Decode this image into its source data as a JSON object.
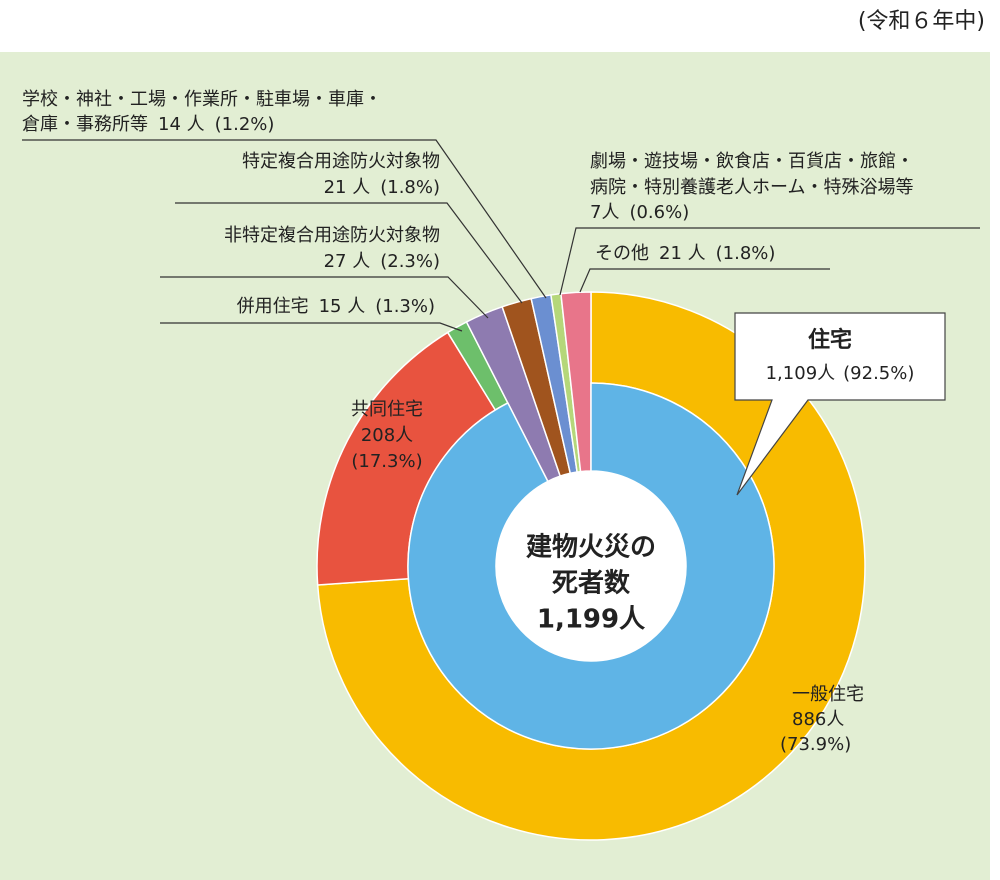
{
  "period": "(令和６年中)",
  "chart_data": {
    "type": "pie",
    "center_lines": [
      "建物火災の",
      "死者数"
    ],
    "total": 1199,
    "total_label": "1,199人",
    "segments": [
      {
        "name_lines": [
          "一般住宅"
        ],
        "value": 886,
        "value_label": "886人",
        "percent": 73.9,
        "percent_label": "(73.9%)",
        "color": "#f8bb00"
      },
      {
        "name_lines": [
          "共同住宅"
        ],
        "value": 208,
        "value_label": "208人",
        "percent": 17.3,
        "percent_label": "(17.3%)",
        "color": "#e8533f"
      },
      {
        "name_lines": [
          "併用住宅"
        ],
        "value": 15,
        "value_label": "15 人",
        "percent": 1.3,
        "percent_label": "(1.3%)",
        "color": "#6dbf6b"
      },
      {
        "name_lines": [
          "非特定複合用途防火対象物"
        ],
        "value": 27,
        "value_label": "27 人",
        "percent": 2.3,
        "percent_label": "(2.3%)",
        "color": "#8e7bb0"
      },
      {
        "name_lines": [
          "特定複合用途防火対象物"
        ],
        "value": 21,
        "value_label": "21 人",
        "percent": 1.8,
        "percent_label": "(1.8%)",
        "color": "#a0541e"
      },
      {
        "name_lines": [
          "学校・神社・工場・作業所・駐車場・車庫・",
          "倉庫・事務所等"
        ],
        "value": 14,
        "value_label": "14 人",
        "percent": 1.2,
        "percent_label": "(1.2%)",
        "color": "#6b8fd1"
      },
      {
        "name_lines": [
          "劇場・遊技場・飲食店・百貨店・旅館・",
          "病院・特別養護老人ホーム・特殊浴場等"
        ],
        "value": 7,
        "value_label": "7人",
        "percent": 0.6,
        "percent_label": "(0.6%)",
        "color": "#b5d77a"
      },
      {
        "name_lines": [
          "その他"
        ],
        "value": 21,
        "value_label": "21 人",
        "percent": 1.8,
        "percent_label": "(1.8%)",
        "color": "#e8758a"
      }
    ],
    "inner": {
      "name": "住宅",
      "value": 1109,
      "value_label": "1,109人",
      "percent": 92.5,
      "percent_label": "(92.5%)",
      "color": "#5fb4e6",
      "covers": 3
    }
  }
}
